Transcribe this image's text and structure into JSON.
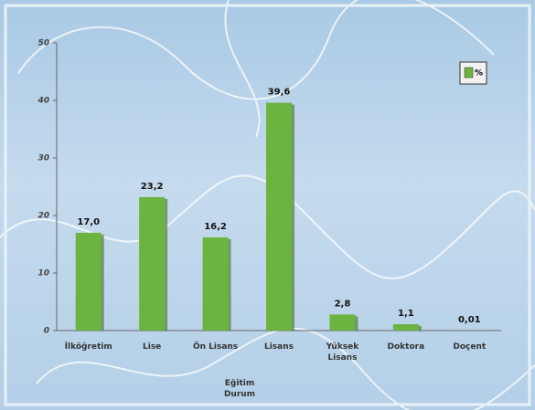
{
  "chart_data": {
    "type": "bar",
    "x_label": "Eğitim Durum",
    "categories": [
      "İlköğretim",
      "Lise",
      "Ön Lisans",
      "Lisans",
      "Yüksek Lisans",
      "Doktora",
      "Doçent"
    ],
    "series": [
      {
        "name": "%",
        "color": "#6db33f",
        "values": [
          17.0,
          23.2,
          16.2,
          39.6,
          2.8,
          1.1,
          0.01
        ],
        "value_labels": [
          "17,0",
          "23,2",
          "16,2",
          "39,6",
          "2,8",
          "1,1",
          "0,01"
        ]
      }
    ],
    "ylim": [
      0,
      50
    ],
    "yticks": [
      0,
      10,
      20,
      30,
      40,
      50
    ],
    "legend": "top-right"
  }
}
